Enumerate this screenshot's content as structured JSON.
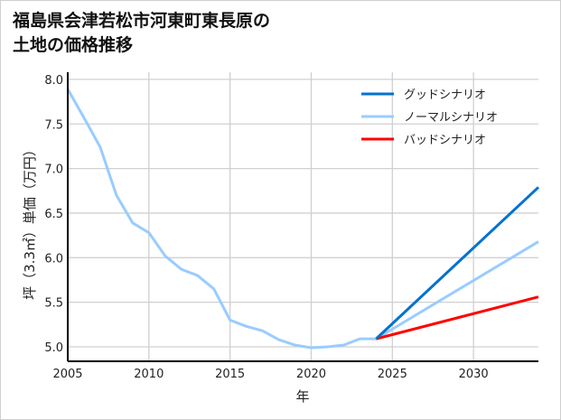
{
  "chart_data": {
    "type": "line",
    "title": "福島県会津若松市河東町東長原の土地の価格推移",
    "title_lines": [
      "福島県会津若松市河東町東長原の",
      "土地の価格推移"
    ],
    "xlabel": "年",
    "ylabel": "坪（3.3㎡）単価（万円）",
    "xlim": [
      2005,
      2034
    ],
    "ylim": [
      4.85,
      8.05
    ],
    "xticks": [
      2005,
      2010,
      2015,
      2020,
      2025,
      2030
    ],
    "yticks": [
      "5.0",
      "5.5",
      "6.0",
      "6.5",
      "7.0",
      "7.5",
      "8.0"
    ],
    "grid": true,
    "legend_position": "top-right",
    "series": [
      {
        "name": "グッドシナリオ",
        "color": "#0072cf",
        "x": [
          2024,
          2034
        ],
        "y": [
          5.09,
          6.79
        ]
      },
      {
        "name": "ノーマルシナリオ",
        "color": "#99ccff",
        "x": [
          2005,
          2006,
          2007,
          2008,
          2009,
          2010,
          2011,
          2012,
          2013,
          2014,
          2015,
          2016,
          2017,
          2018,
          2019,
          2020,
          2021,
          2022,
          2023,
          2024,
          2034
        ],
        "y": [
          7.89,
          7.57,
          7.24,
          6.7,
          6.39,
          6.28,
          6.02,
          5.87,
          5.8,
          5.65,
          5.3,
          5.23,
          5.18,
          5.08,
          5.02,
          4.99,
          5.0,
          5.02,
          5.09,
          5.09,
          6.18
        ]
      },
      {
        "name": "バッドシナリオ",
        "color": "#ff0000",
        "x": [
          2024,
          2034
        ],
        "y": [
          5.09,
          5.56
        ]
      }
    ]
  }
}
